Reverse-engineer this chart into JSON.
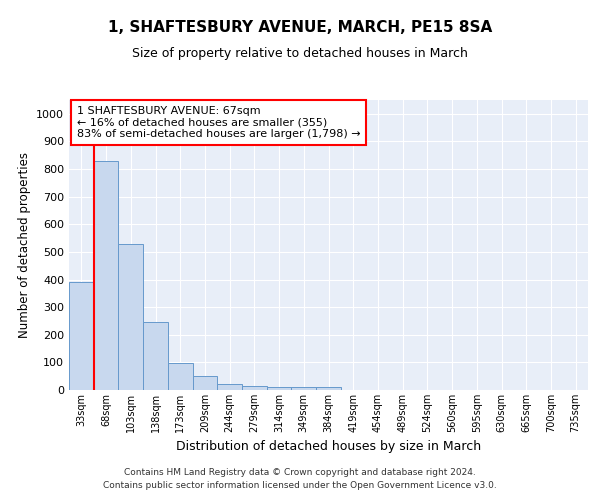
{
  "title": "1, SHAFTESBURY AVENUE, MARCH, PE15 8SA",
  "subtitle": "Size of property relative to detached houses in March",
  "xlabel": "Distribution of detached houses by size in March",
  "ylabel": "Number of detached properties",
  "bar_color": "#c8d8ee",
  "bar_edge_color": "#6699cc",
  "background_color": "#e8eef8",
  "grid_color": "#ffffff",
  "bin_labels": [
    "33sqm",
    "68sqm",
    "103sqm",
    "138sqm",
    "173sqm",
    "209sqm",
    "244sqm",
    "279sqm",
    "314sqm",
    "349sqm",
    "384sqm",
    "419sqm",
    "454sqm",
    "489sqm",
    "524sqm",
    "560sqm",
    "595sqm",
    "630sqm",
    "665sqm",
    "700sqm",
    "735sqm"
  ],
  "bar_values": [
    390,
    830,
    530,
    245,
    97,
    52,
    22,
    15,
    12,
    10,
    10,
    0,
    0,
    0,
    0,
    0,
    0,
    0,
    0,
    0,
    0
  ],
  "property_label": "1 SHAFTESBURY AVENUE: 67sqm",
  "annotation_line1": "← 16% of detached houses are smaller (355)",
  "annotation_line2": "83% of semi-detached houses are larger (1,798) →",
  "vline_x": 0.5,
  "ylim": [
    0,
    1050
  ],
  "yticks": [
    0,
    100,
    200,
    300,
    400,
    500,
    600,
    700,
    800,
    900,
    1000
  ],
  "footer_line1": "Contains HM Land Registry data © Crown copyright and database right 2024.",
  "footer_line2": "Contains public sector information licensed under the Open Government Licence v3.0."
}
